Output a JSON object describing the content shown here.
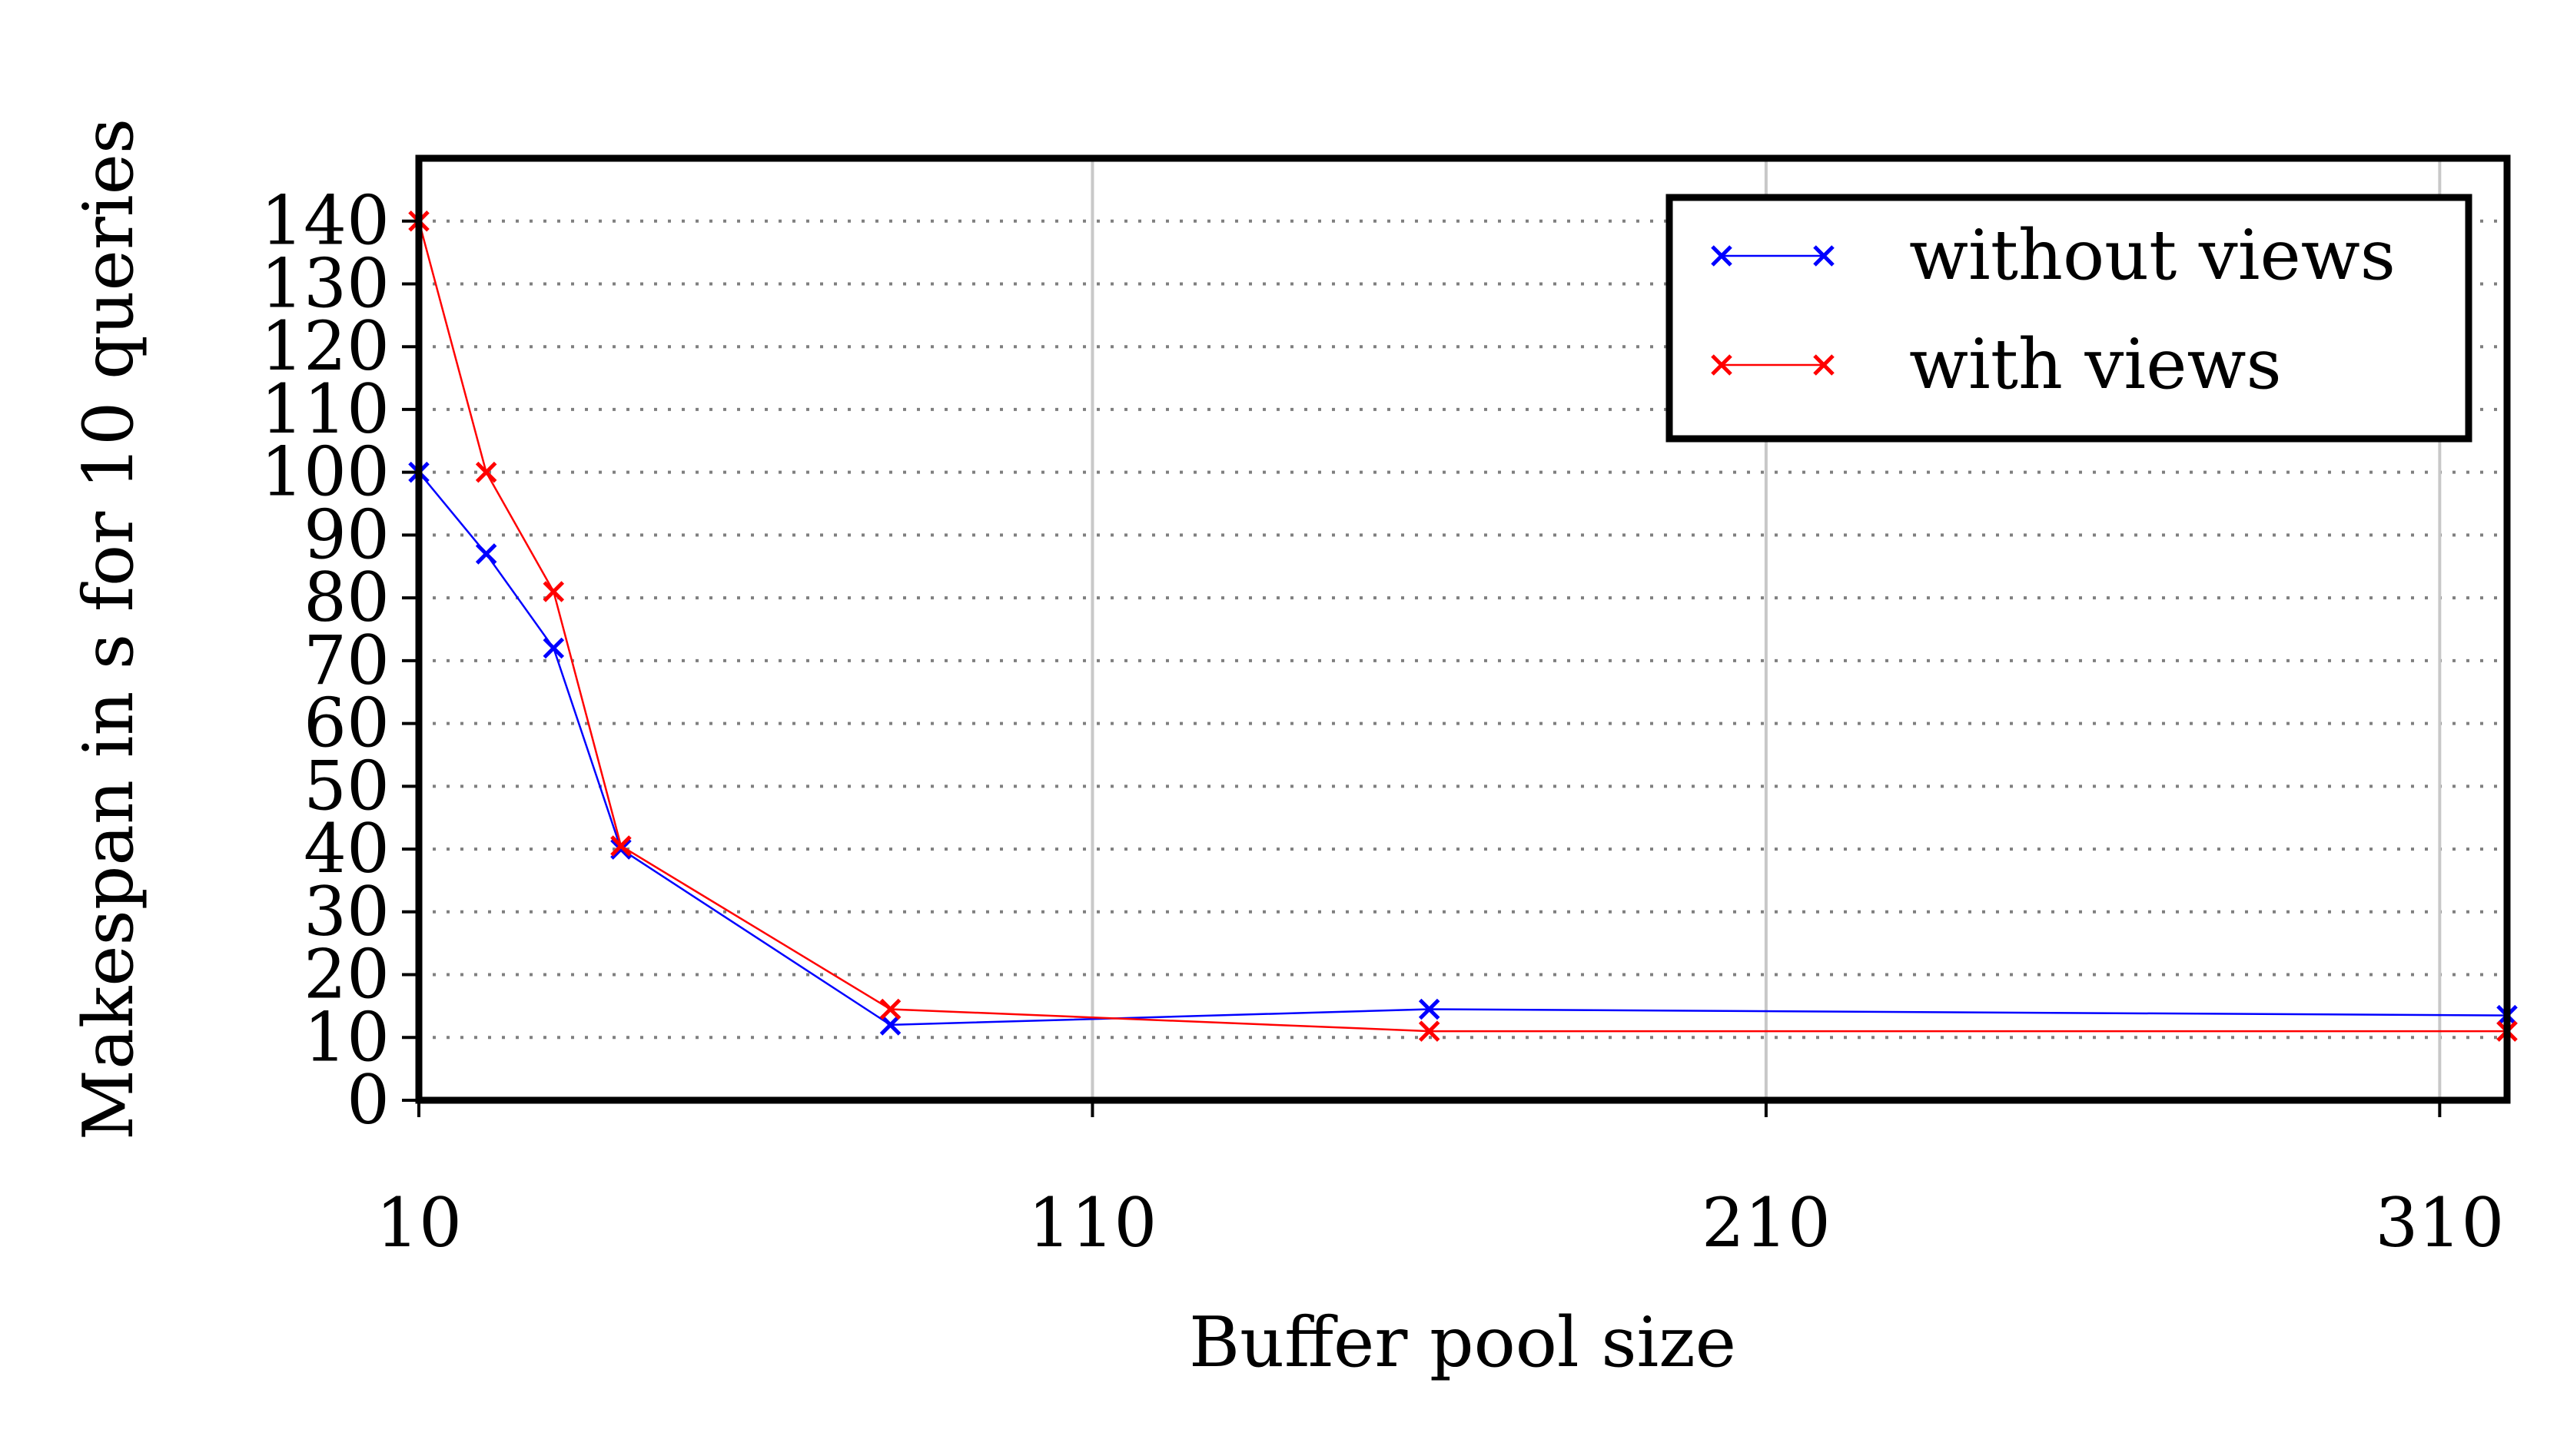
{
  "chart_data": {
    "type": "line",
    "title": "",
    "xlabel": "Buffer pool size",
    "ylabel": "Makespan in s for 10 queries",
    "xlim": [
      10,
      320
    ],
    "ylim": [
      0,
      150
    ],
    "x_ticks": [
      10,
      110,
      210,
      310
    ],
    "y_ticks": [
      0,
      10,
      20,
      30,
      40,
      50,
      60,
      70,
      80,
      90,
      100,
      110,
      120,
      130,
      140
    ],
    "x_grid": "solid light gray",
    "y_grid": "dotted gray",
    "marker": "x",
    "legend_position": "top-right",
    "series": [
      {
        "name": "without views",
        "color": "#0000ff",
        "x": [
          10,
          20,
          30,
          40,
          80,
          160,
          320
        ],
        "y": [
          100,
          87,
          72,
          40,
          12,
          14.5,
          13.5
        ]
      },
      {
        "name": "with views",
        "color": "#ff0000",
        "x": [
          10,
          20,
          30,
          40,
          80,
          160,
          320
        ],
        "y": [
          140,
          100,
          81,
          40.5,
          14.5,
          11,
          11
        ]
      }
    ]
  }
}
